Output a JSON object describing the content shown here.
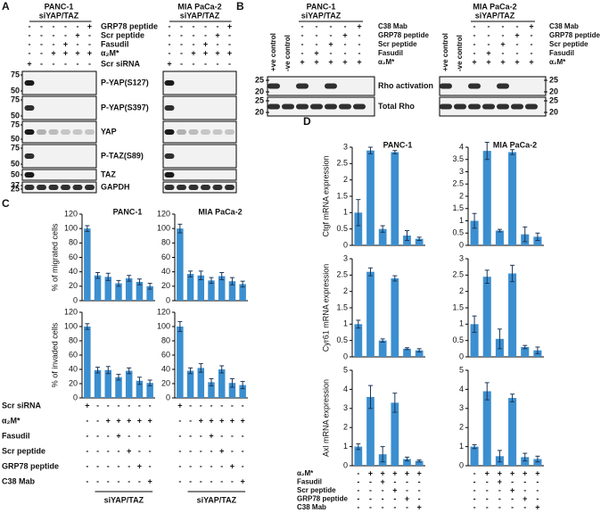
{
  "panel_labels": [
    "A",
    "B",
    "C",
    "D"
  ],
  "panel_a": {
    "cell_lines": [
      {
        "name": "PANC-1",
        "condition": "siYAP/TAZ"
      },
      {
        "name": "MIA PaCa-2",
        "condition": "siYAP/TAZ"
      }
    ],
    "treatments": [
      {
        "name": "GRP78 peptide",
        "signs": [
          "-",
          "-",
          "-",
          "-",
          "-",
          "+"
        ]
      },
      {
        "name": "Scr peptide",
        "signs": [
          "-",
          "-",
          "-",
          "-",
          "+",
          "-"
        ]
      },
      {
        "name": "Fasudil",
        "signs": [
          "-",
          "-",
          "-",
          "+",
          "-",
          "-"
        ]
      },
      {
        "name": "α₂M*",
        "signs": [
          "-",
          "-",
          "+",
          "+",
          "+",
          "+"
        ]
      },
      {
        "name": "Scr siRNA",
        "signs": [
          "+",
          "-",
          "-",
          "-",
          "-",
          "-"
        ]
      }
    ],
    "blots": [
      {
        "name": "P-YAP(S127)",
        "markers": [
          75,
          50
        ]
      },
      {
        "name": "P-YAP(S397)",
        "markers": [
          75,
          50
        ]
      },
      {
        "name": "YAP",
        "markers": [
          75,
          50
        ]
      },
      {
        "name": "P-TAZ(S89)",
        "markers": [
          75,
          50
        ]
      },
      {
        "name": "TAZ",
        "markers": [
          50
        ]
      },
      {
        "name": "GAPDH",
        "markers": [
          37,
          25
        ]
      }
    ]
  },
  "panel_b": {
    "cell_lines": [
      {
        "name": "PANC-1",
        "condition": "siYAP/TAZ"
      },
      {
        "name": "MIA PaCa-2",
        "condition": "siYAP/TAZ"
      }
    ],
    "lane_labels": [
      "+ve control",
      "-ve control"
    ],
    "treatments": [
      {
        "name": "C38 Mab",
        "signs": [
          "-",
          "-",
          "-",
          "-",
          "+"
        ]
      },
      {
        "name": "GRP78 peptide",
        "signs": [
          "-",
          "-",
          "-",
          "+",
          "-"
        ]
      },
      {
        "name": "Scr peptide",
        "signs": [
          "-",
          "-",
          "+",
          "-",
          "-"
        ]
      },
      {
        "name": "Fasudil",
        "signs": [
          "-",
          "+",
          "-",
          "-",
          "-"
        ]
      },
      {
        "name": "α₂M*",
        "signs": [
          "+",
          "+",
          "+",
          "+",
          "+"
        ]
      }
    ],
    "blots": [
      {
        "name": "Rho activation",
        "markers": [
          25,
          20
        ]
      },
      {
        "name": "Total Rho",
        "markers": [
          25,
          20
        ]
      }
    ]
  },
  "panel_c": {
    "treatments": [
      {
        "name": "Scr siRNA",
        "signs": [
          "+",
          "-",
          "-",
          "-",
          "-",
          "-",
          "-"
        ]
      },
      {
        "name": "α₂M*",
        "signs": [
          "-",
          "-",
          "+",
          "+",
          "+",
          "+",
          "+"
        ]
      },
      {
        "name": "Fasudil",
        "signs": [
          "-",
          "-",
          "-",
          "+",
          "-",
          "-",
          "-"
        ]
      },
      {
        "name": "Scr peptide",
        "signs": [
          "-",
          "-",
          "-",
          "-",
          "+",
          "-",
          "-"
        ]
      },
      {
        "name": "GRP78 peptide",
        "signs": [
          "-",
          "-",
          "-",
          "-",
          "-",
          "+",
          "-"
        ]
      },
      {
        "name": "C38 Mab",
        "signs": [
          "-",
          "-",
          "-",
          "-",
          "-",
          "-",
          "+"
        ]
      }
    ],
    "group_label": "siYAP/TAZ"
  },
  "panel_d": {
    "treatments": [
      {
        "name": "α₂M*",
        "signs": [
          "-",
          "+",
          "+",
          "+",
          "+",
          "+"
        ]
      },
      {
        "name": "Fasudil",
        "signs": [
          "-",
          "-",
          "+",
          "-",
          "-",
          "-"
        ]
      },
      {
        "name": "Scr peptide",
        "signs": [
          "-",
          "-",
          "-",
          "+",
          "-",
          "-"
        ]
      },
      {
        "name": "GRP78 peptide",
        "signs": [
          "-",
          "-",
          "-",
          "-",
          "+",
          "-"
        ]
      },
      {
        "name": "C38 Mab",
        "signs": [
          "-",
          "-",
          "-",
          "-",
          "-",
          "+"
        ]
      }
    ]
  },
  "chart_data": [
    {
      "type": "bar",
      "title": "PANC-1",
      "y_label": "% of migrated cells",
      "color": "#3b8fd0",
      "values": [
        100,
        35,
        33,
        24,
        31,
        26,
        20
      ],
      "errors": [
        4,
        4,
        5,
        4,
        4,
        4,
        4
      ],
      "ylim": [
        0,
        120
      ],
      "yticks": [
        0,
        20,
        40,
        60,
        80,
        100,
        120
      ]
    },
    {
      "type": "bar",
      "title": "MIA PaCa-2",
      "color": "#3b8fd0",
      "values": [
        100,
        37,
        35,
        28,
        34,
        27,
        23
      ],
      "errors": [
        6,
        4,
        6,
        4,
        5,
        5,
        4
      ],
      "ylim": [
        0,
        120
      ],
      "yticks": [
        0,
        20,
        40,
        60,
        80,
        100,
        120
      ]
    },
    {
      "type": "bar",
      "y_label": "% of invaded cells",
      "color": "#3b8fd0",
      "values": [
        100,
        39,
        39,
        29,
        38,
        24,
        21
      ],
      "errors": [
        4,
        4,
        5,
        4,
        4,
        5,
        4
      ],
      "ylim": [
        0,
        120
      ],
      "yticks": [
        0,
        20,
        40,
        60,
        80,
        100,
        120
      ]
    },
    {
      "type": "bar",
      "color": "#3b8fd0",
      "values": [
        100,
        38,
        42,
        22,
        40,
        21,
        18
      ],
      "errors": [
        7,
        4,
        6,
        5,
        5,
        6,
        5
      ],
      "ylim": [
        0,
        120
      ],
      "yticks": [
        0,
        20,
        40,
        60,
        80,
        100,
        120
      ]
    },
    {
      "type": "bar",
      "title": "PANC-1",
      "y_label": "Ctgf mRNA expression",
      "color": "#3b8fd0",
      "values": [
        1.0,
        2.9,
        0.5,
        2.85,
        0.3,
        0.2
      ],
      "errors": [
        0.4,
        0.1,
        0.1,
        0.05,
        0.15,
        0.05
      ],
      "ylim": [
        0,
        3
      ],
      "yticks": [
        0,
        0.5,
        1,
        1.5,
        2,
        2.5,
        3
      ]
    },
    {
      "type": "bar",
      "title": "MIA PaCa-2",
      "color": "#3b8fd0",
      "values": [
        1.0,
        3.85,
        0.6,
        3.8,
        0.45,
        0.35
      ],
      "errors": [
        0.3,
        0.35,
        0.05,
        0.1,
        0.3,
        0.15
      ],
      "ylim": [
        0,
        4
      ],
      "yticks": [
        0,
        0.5,
        1,
        1.5,
        2,
        2.5,
        3,
        3.5,
        4
      ]
    },
    {
      "type": "bar",
      "y_label": "Cyr61 mRNA expression",
      "color": "#3b8fd0",
      "values": [
        1.0,
        2.6,
        0.5,
        2.4,
        0.25,
        0.2
      ],
      "errors": [
        0.12,
        0.12,
        0.05,
        0.08,
        0.03,
        0.05
      ],
      "ylim": [
        0,
        3
      ],
      "yticks": [
        0,
        0.5,
        1,
        1.5,
        2,
        2.5,
        3
      ]
    },
    {
      "type": "bar",
      "color": "#3b8fd0",
      "values": [
        1.0,
        2.45,
        0.55,
        2.55,
        0.3,
        0.2
      ],
      "errors": [
        0.25,
        0.2,
        0.3,
        0.25,
        0.05,
        0.1
      ],
      "ylim": [
        0,
        3
      ],
      "yticks": [
        0,
        0.5,
        1,
        1.5,
        2,
        2.5,
        3
      ]
    },
    {
      "type": "bar",
      "y_label": "Axl mRNA expression",
      "color": "#3b8fd0",
      "values": [
        1.0,
        3.6,
        0.6,
        3.3,
        0.35,
        0.25
      ],
      "errors": [
        0.15,
        0.6,
        0.4,
        0.5,
        0.1,
        0.05
      ],
      "ylim": [
        0,
        5
      ],
      "yticks": [
        0,
        1,
        2,
        3,
        4,
        5
      ]
    },
    {
      "type": "bar",
      "color": "#3b8fd0",
      "values": [
        1.0,
        3.9,
        0.5,
        3.55,
        0.45,
        0.35
      ],
      "errors": [
        0.1,
        0.45,
        0.3,
        0.2,
        0.2,
        0.15
      ],
      "ylim": [
        0,
        5
      ],
      "yticks": [
        0,
        1,
        2,
        3,
        4,
        5
      ]
    }
  ]
}
